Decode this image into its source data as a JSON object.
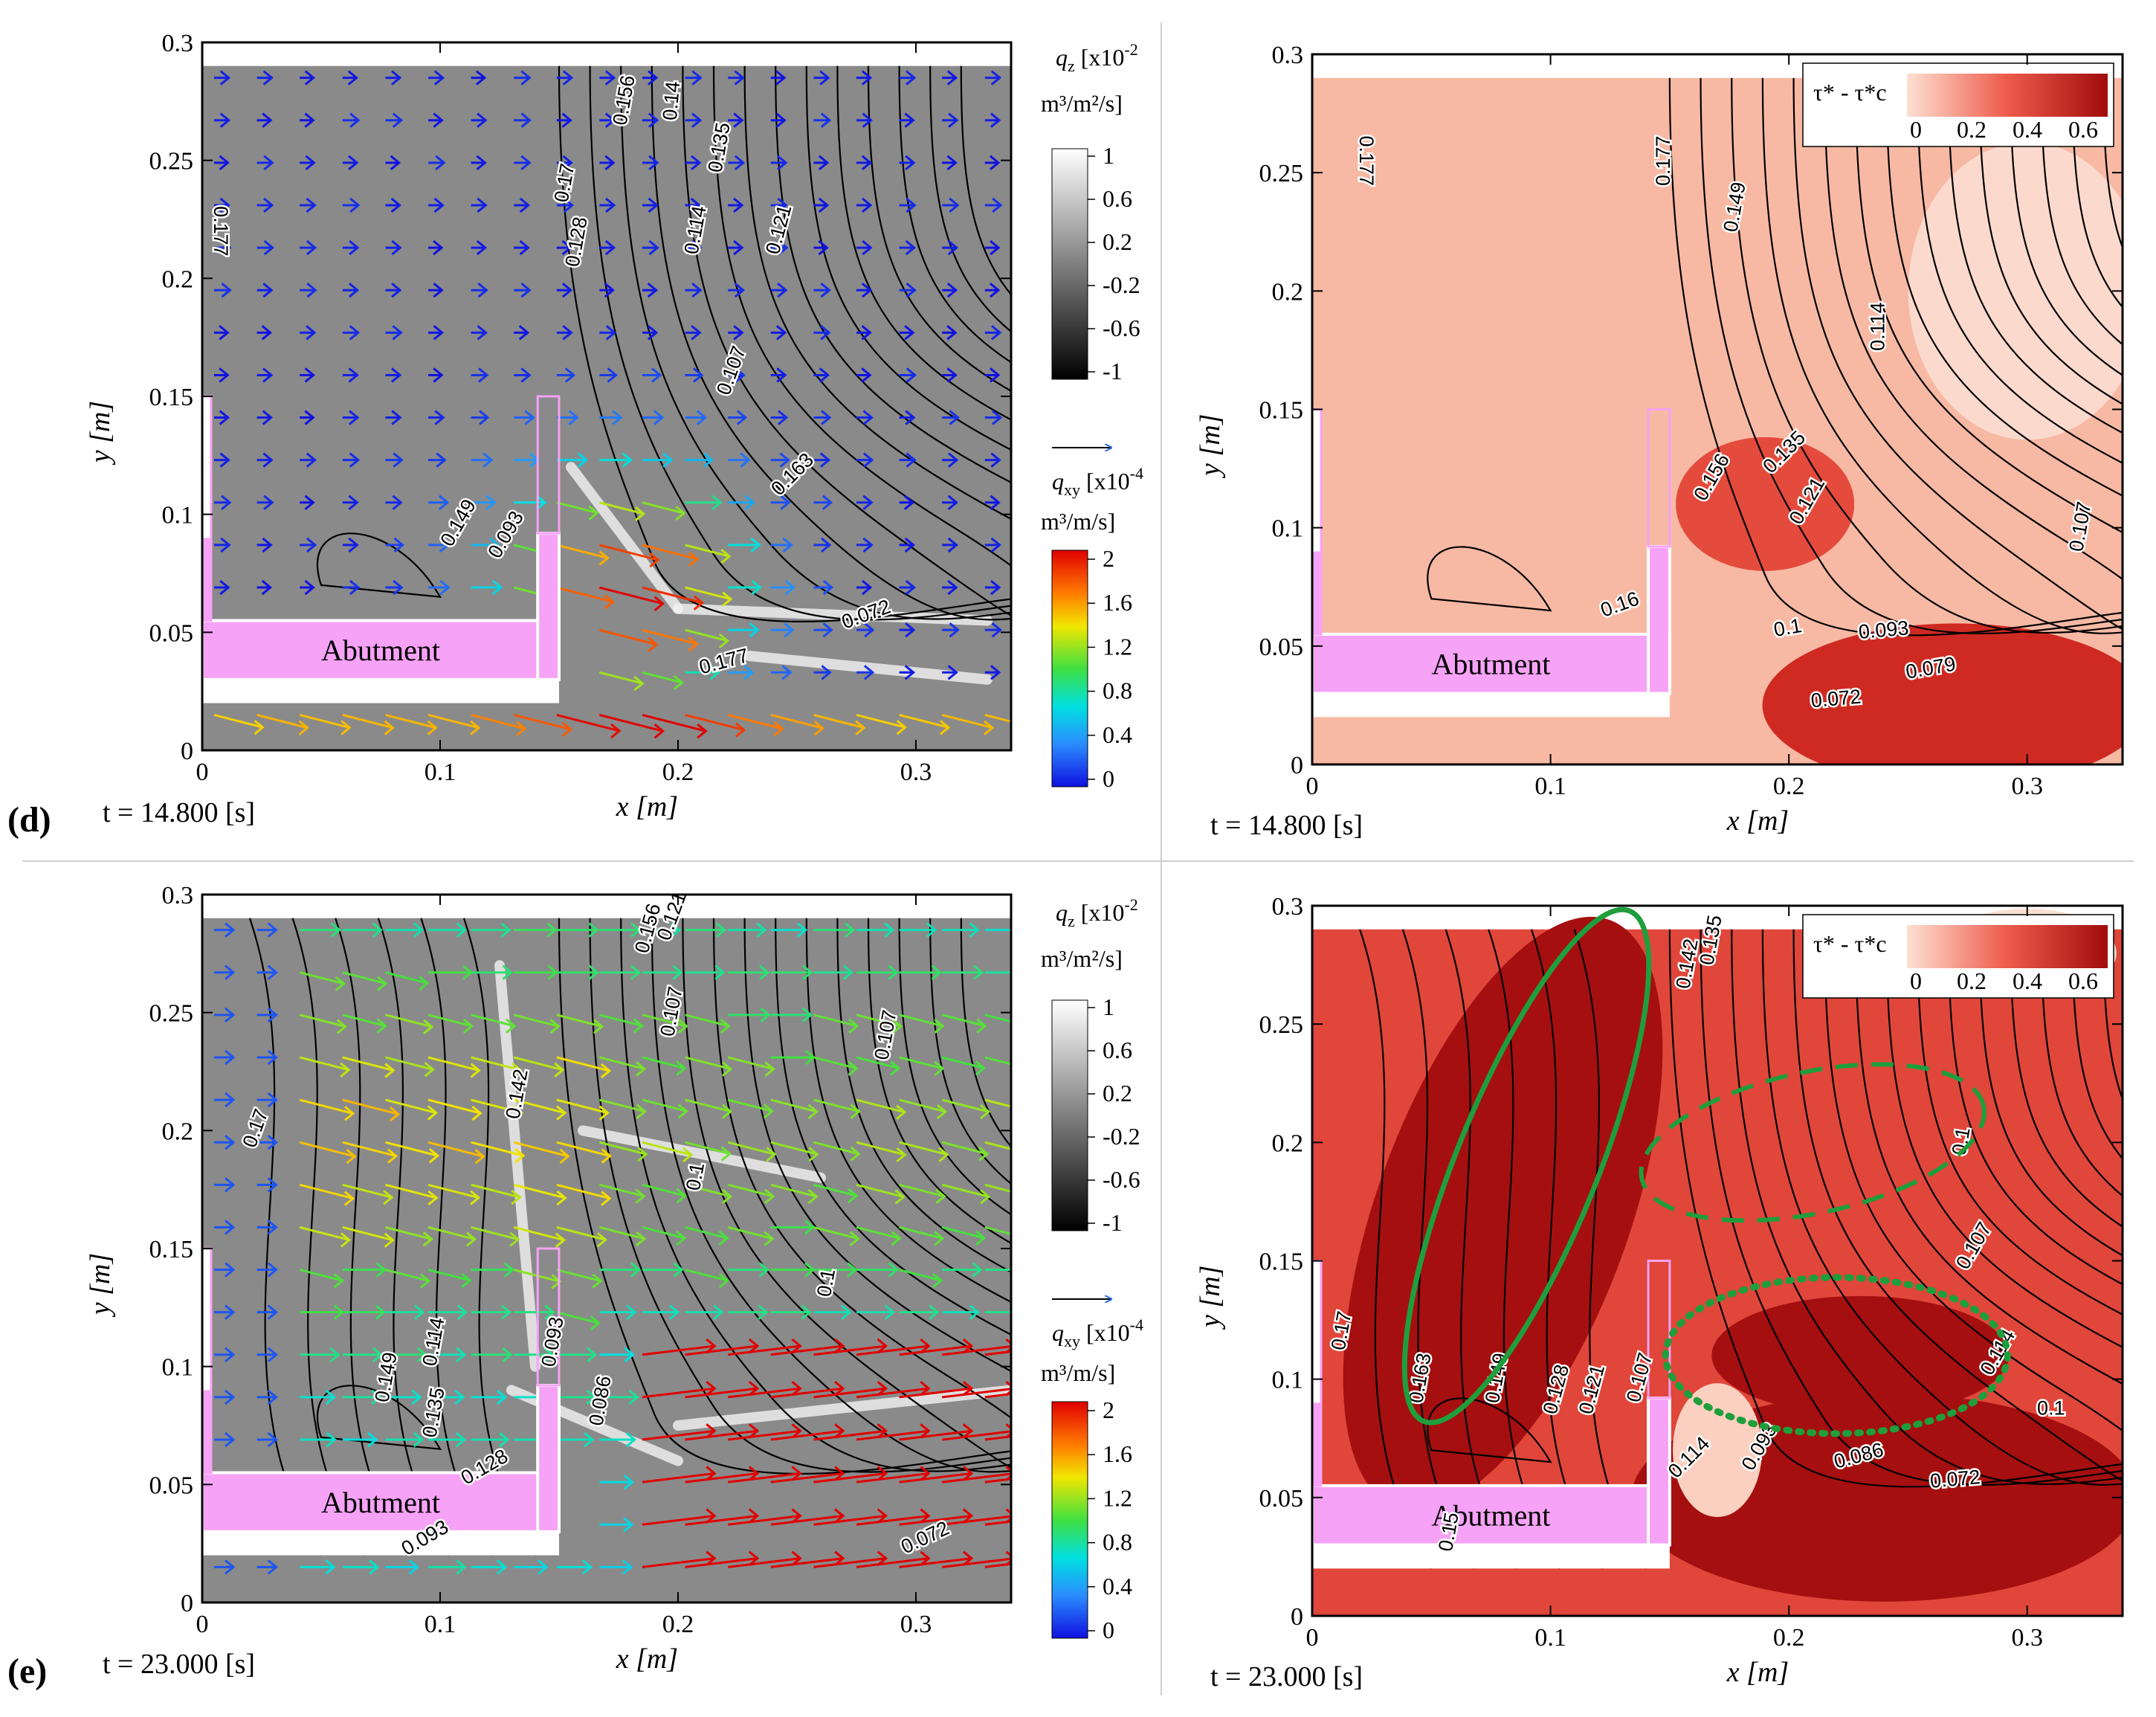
{
  "chart_data": [
    {
      "type": "contour-vector",
      "panel": "(d)",
      "variable": "q_z / q_xy",
      "time_label": "t = 14.800 [s]",
      "xlabel": "x [m]",
      "ylabel": "y [m]",
      "xlim": [
        0,
        0.34
      ],
      "ylim": [
        0,
        0.3
      ],
      "xticks": [
        "0",
        "0.1",
        "0.2",
        "0.3"
      ],
      "yticks": [
        "0",
        "0.05",
        "0.1",
        "0.15",
        "0.2",
        "0.25",
        "0.3"
      ],
      "structure_label": "Abutment",
      "contour_labels": [
        "0.177",
        "0.156",
        "0.14",
        "0.17",
        "0.128",
        "0.135",
        "0.114",
        "0.121",
        "0.107",
        "0.163",
        "0.149",
        "0.093",
        "0.072",
        "0.177"
      ],
      "colorbar_qz": {
        "title": "q_z [x10^-2 m^3/m^2/s]",
        "ticks": [
          "1",
          "0.6",
          "0.2",
          "-0.2",
          "-0.6",
          "-1"
        ]
      },
      "colorbar_qxy": {
        "title": "q_xy [x10^-4 m^3/m/s]",
        "ticks": [
          "2",
          "1.6",
          "1.2",
          "0.8",
          "0.4",
          "0"
        ]
      }
    },
    {
      "type": "contour",
      "panel": "(d)",
      "variable": "τ* - τ*c",
      "time_label": "t = 14.800 [s]",
      "xlabel": "x [m]",
      "ylabel": "y [m]",
      "xlim": [
        0,
        0.34
      ],
      "ylim": [
        0,
        0.3
      ],
      "xticks": [
        "0",
        "0.1",
        "0.2",
        "0.3"
      ],
      "yticks": [
        "0",
        "0.05",
        "0.1",
        "0.15",
        "0.2",
        "0.25",
        "0.3"
      ],
      "structure_label": "Abutment",
      "contour_labels": [
        "0.177",
        "0.177",
        "0.149",
        "0.114",
        "0.156",
        "0.135",
        "0.121",
        "0.16",
        "0.1",
        "0.093",
        "0.079",
        "0.072",
        "0.107"
      ],
      "legend": {
        "title": "τ* - τ*c",
        "ticks": [
          "0",
          "0.2",
          "0.4",
          "0.6"
        ]
      }
    },
    {
      "type": "contour-vector",
      "panel": "(e)",
      "variable": "q_z / q_xy",
      "time_label": "t = 23.000 [s]",
      "xlabel": "x [m]",
      "ylabel": "y [m]",
      "xlim": [
        0,
        0.34
      ],
      "ylim": [
        0,
        0.3
      ],
      "xticks": [
        "0",
        "0.1",
        "0.2",
        "0.3"
      ],
      "yticks": [
        "0",
        "0.05",
        "0.1",
        "0.15",
        "0.2",
        "0.25",
        "0.3"
      ],
      "structure_label": "Abutment",
      "contour_labels": [
        "0.156",
        "0.121",
        "0.17",
        "0.107",
        "0.107",
        "0.142",
        "0.1",
        "0.114",
        "0.093",
        "0.1",
        "0.086",
        "0.149",
        "0.135",
        "0.128",
        "0.093",
        "0.072"
      ],
      "colorbar_qz": {
        "title": "q_z [x10^-2 m^3/m^2/s]",
        "ticks": [
          "1",
          "0.6",
          "0.2",
          "-0.2",
          "-0.6",
          "-1"
        ]
      },
      "colorbar_qxy": {
        "title": "q_xy [x10^-4 m^3/m/s]",
        "ticks": [
          "2",
          "1.6",
          "1.2",
          "0.8",
          "0.4",
          "0"
        ]
      }
    },
    {
      "type": "contour",
      "panel": "(e)",
      "variable": "τ* - τ*c",
      "time_label": "t = 23.000 [s]",
      "xlabel": "x [m]",
      "ylabel": "y [m]",
      "xlim": [
        0,
        0.34
      ],
      "ylim": [
        0,
        0.3
      ],
      "xticks": [
        "0",
        "0.1",
        "0.2",
        "0.3"
      ],
      "yticks": [
        "0",
        "0.05",
        "0.1",
        "0.15",
        "0.2",
        "0.25",
        "0.3"
      ],
      "structure_label": "Abutment",
      "contour_labels": [
        "0.142",
        "0.135",
        "0.1",
        "0.107",
        "0.114",
        "0.17",
        "0.163",
        "0.149",
        "0.128",
        "0.121",
        "0.107",
        "0.1",
        "0.114",
        "0.093",
        "0.086",
        "0.072",
        "0.15"
      ],
      "legend": {
        "title": "τ* - τ*c",
        "ticks": [
          "0",
          "0.2",
          "0.4",
          "0.6"
        ]
      }
    }
  ],
  "labels": {
    "panel_d": "(d)",
    "panel_e": "(e)",
    "time_d": "t = 14.800 [s]",
    "time_e": "t = 23.000 [s]",
    "xlabel": "x [m]",
    "ylabel": "y [m]",
    "abutment": "Abutment",
    "qz_title_1": "q",
    "qz_sub": "z",
    "qz_title_2": " [x10",
    "qz_sup": "-2",
    "qz_units": "m³/m²/s]",
    "qxy_title_1": "q",
    "qxy_sub": "xy",
    "qxy_title_2": " [x10",
    "qxy_sup": "-4",
    "qxy_units": "m³/m/s]",
    "tau_legend": "τ* - τ*c"
  },
  "colors": {
    "abutment": "#f6a2f6",
    "grey_bg": "#8a8a8a",
    "red_low": "#f7b9a4",
    "red_high": "#a50f0f",
    "ellipse": "#1f9e3c"
  }
}
